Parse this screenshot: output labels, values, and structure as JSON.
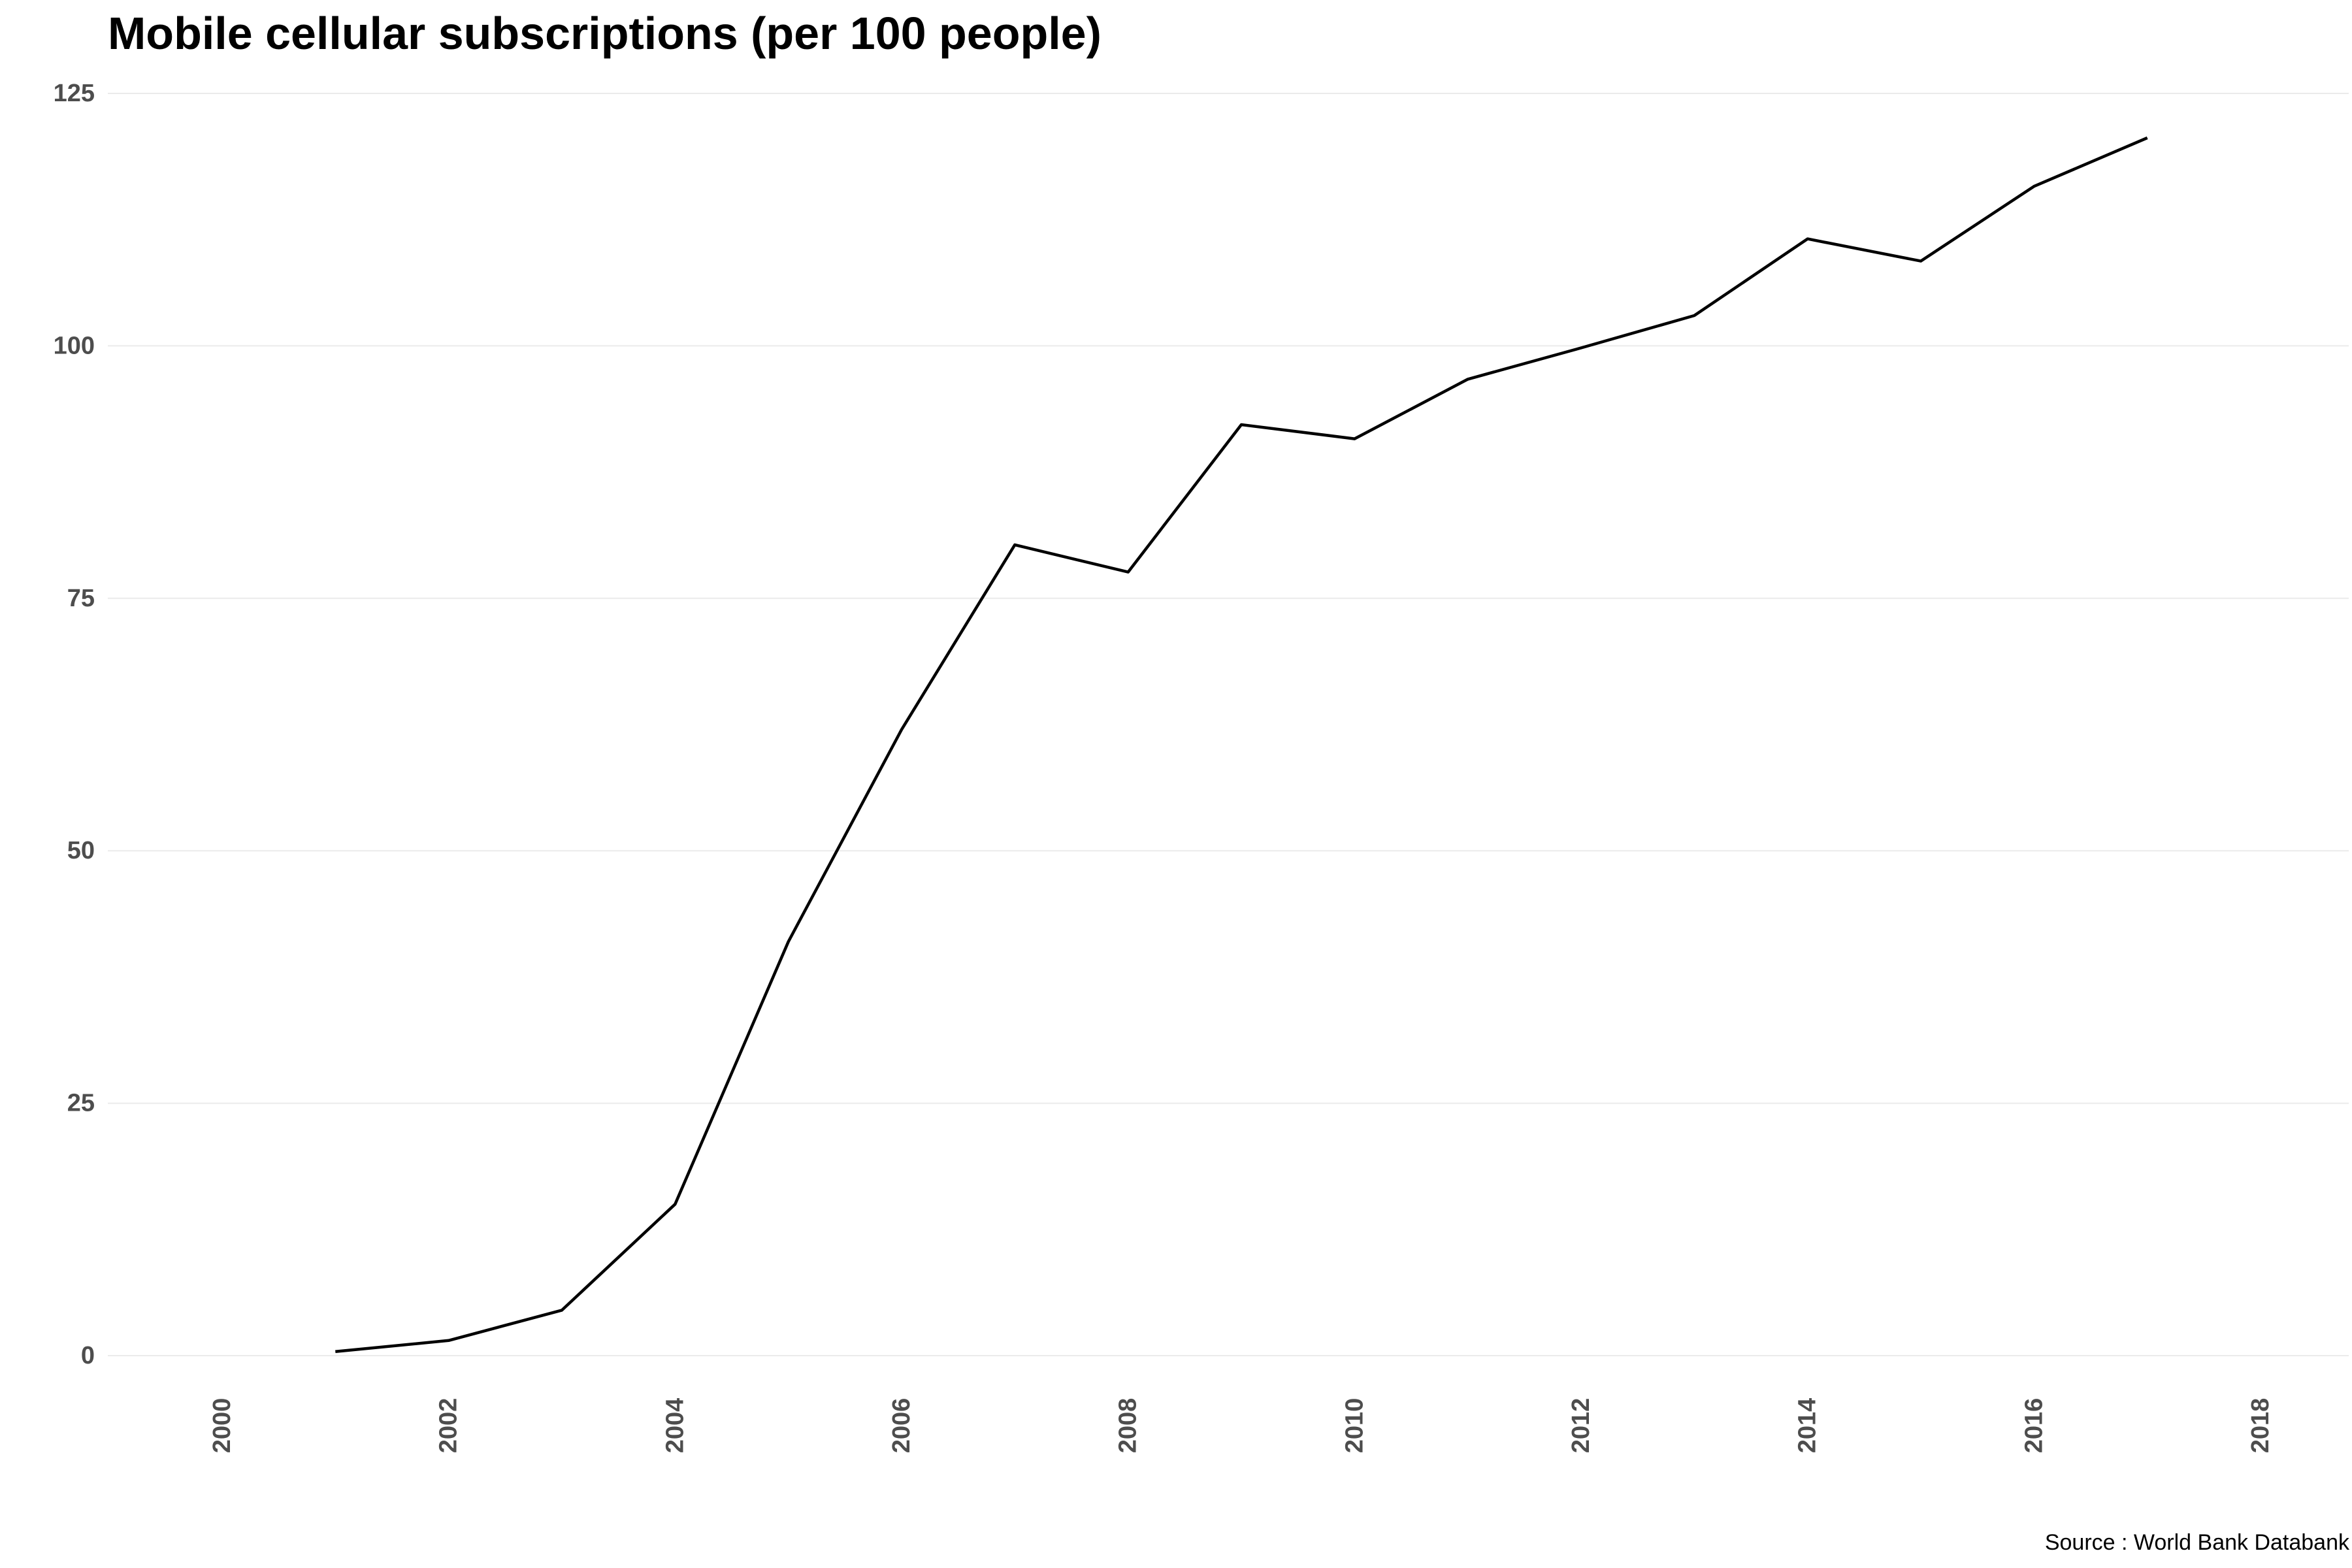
{
  "chart_data": {
    "type": "line",
    "title": "Mobile cellular subscriptions (per 100 people)",
    "caption": "Source : World Bank Databank",
    "xlabel": "",
    "ylabel": "",
    "xlim": [
      1999,
      2019
    ],
    "ylim": [
      0,
      125
    ],
    "x_ticks": [
      2000,
      2002,
      2004,
      2006,
      2008,
      2010,
      2012,
      2014,
      2016,
      2018
    ],
    "y_ticks": [
      0,
      25,
      50,
      75,
      100,
      125
    ],
    "grid": "horizontal major lines",
    "legend": "none",
    "colors": {
      "line": "#000000",
      "grid": "#ebebeb",
      "tick_text": "#4d4d4d"
    },
    "series": [
      {
        "x": [
          2001,
          2002,
          2003,
          2004,
          2005,
          2006,
          2007,
          2008,
          2009,
          2010,
          2011,
          2012,
          2013,
          2014,
          2015,
          2016,
          2017
        ],
        "values": [
          0.4,
          1.5,
          4.5,
          15.0,
          41.0,
          62.0,
          80.3,
          77.6,
          92.2,
          90.8,
          96.7,
          99.8,
          103.0,
          110.6,
          108.4,
          115.8,
          120.6
        ]
      }
    ]
  }
}
